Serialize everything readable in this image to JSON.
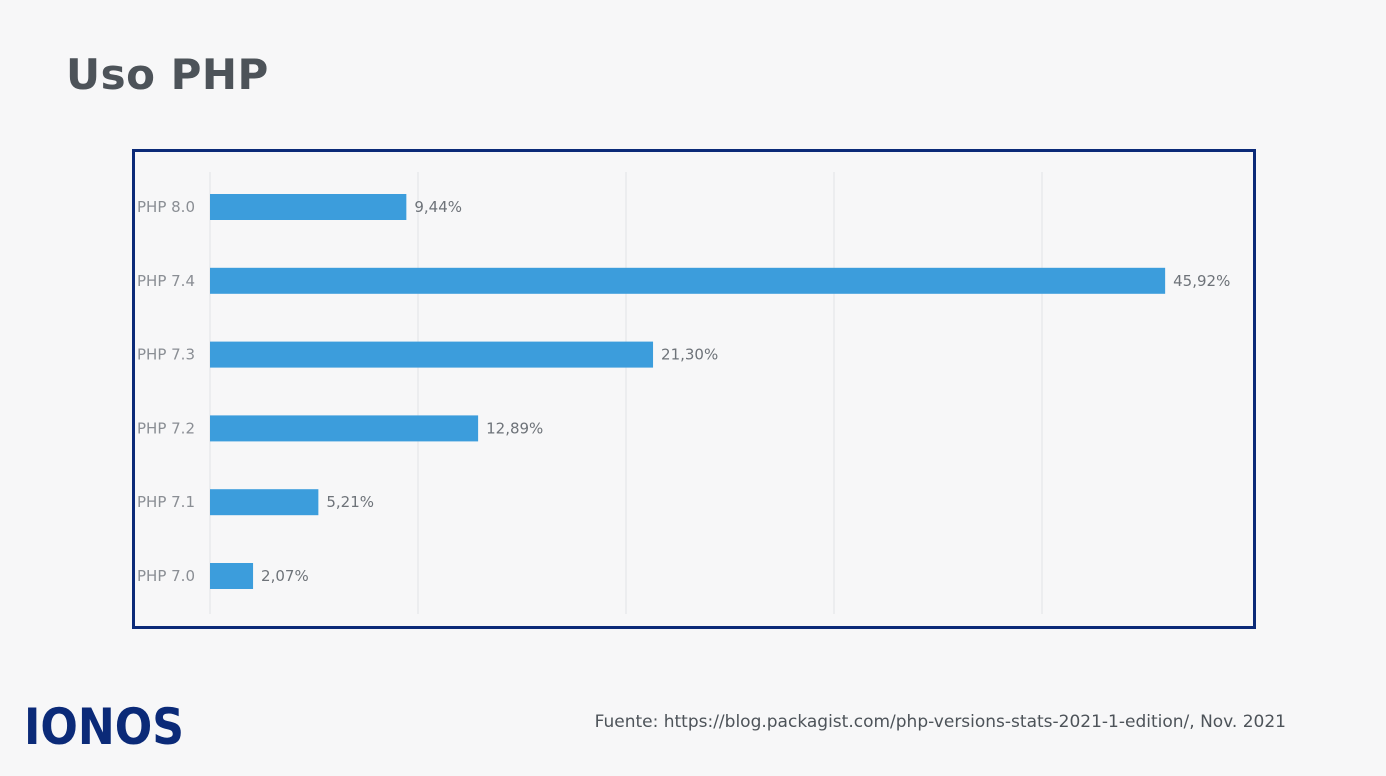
{
  "page": {
    "title": "Uso PHP",
    "source": "Fuente: https://blog.packagist.com/php-versions-stats-2021-1-edition/, Nov. 2021",
    "logo_text": "IONOS"
  },
  "colors": {
    "background": "#f7f7f8",
    "frame_border": "#0b2a78",
    "bar": "#3c9ddc",
    "gridline": "#e2e3e6",
    "logo": "#0b2a78",
    "title": "#4d5359"
  },
  "chart_data": {
    "type": "bar",
    "orientation": "horizontal",
    "title": "",
    "xlabel": "",
    "ylabel": "",
    "xlim": [
      0,
      50
    ],
    "grid": true,
    "categories": [
      "PHP 8.0",
      "PHP 7.4",
      "PHP 7.3",
      "PHP 7.2",
      "PHP 7.1",
      "PHP 7.0"
    ],
    "values": [
      9.44,
      45.92,
      21.3,
      12.89,
      5.21,
      2.07
    ],
    "value_labels": [
      "9,44%",
      "45,92%",
      "21,30%",
      "12,89%",
      "5,21%",
      "2,07%"
    ],
    "unit": "%"
  }
}
